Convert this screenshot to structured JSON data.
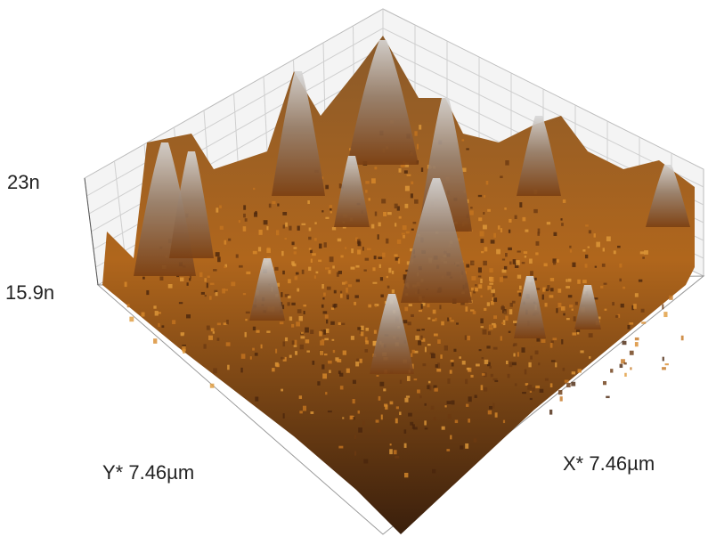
{
  "z_axis": {
    "top_label": "23n",
    "bottom_label": "15.9n"
  },
  "y_axis": {
    "label": "Y* 7.46µm"
  },
  "x_axis": {
    "label": "X* 7.46µm"
  }
}
